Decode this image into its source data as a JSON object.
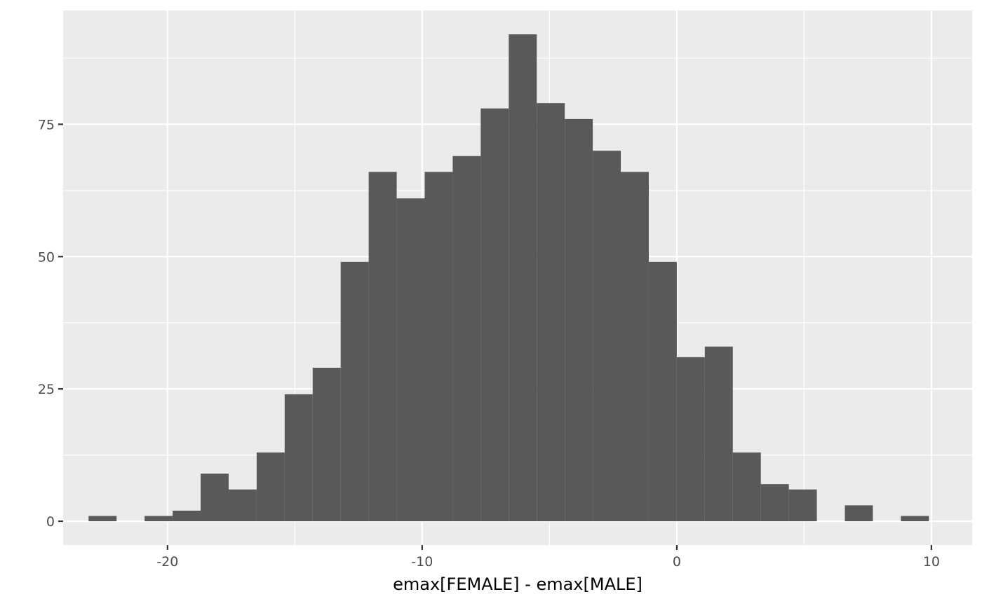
{
  "chart_data": {
    "type": "histogram",
    "title": "",
    "xlabel": "emax[FEMALE] - emax[MALE]",
    "ylabel": "",
    "xlim": [
      -24.1,
      11.6
    ],
    "ylim": [
      -4.5,
      96.5
    ],
    "bin_width": 1.1,
    "x_ticks": [
      -20,
      -10,
      0,
      10
    ],
    "x_tick_labels": [
      "-20",
      "-10",
      "0",
      "10"
    ],
    "y_ticks": [
      0,
      25,
      50,
      75
    ],
    "y_tick_labels": [
      "0",
      "25",
      "50",
      "75"
    ],
    "grid": true,
    "legend": "none",
    "colors": {
      "panel": "#ebebeb",
      "grid": "#ffffff",
      "bar": "#595959",
      "tick": "#333333"
    },
    "bins": [
      {
        "x": -22.55,
        "count": 1
      },
      {
        "x": -21.45,
        "count": 0
      },
      {
        "x": -20.35,
        "count": 1
      },
      {
        "x": -19.25,
        "count": 2
      },
      {
        "x": -18.15,
        "count": 9
      },
      {
        "x": -17.05,
        "count": 6
      },
      {
        "x": -15.95,
        "count": 13
      },
      {
        "x": -14.85,
        "count": 24
      },
      {
        "x": -13.75,
        "count": 29
      },
      {
        "x": -12.65,
        "count": 49
      },
      {
        "x": -11.55,
        "count": 66
      },
      {
        "x": -10.45,
        "count": 61
      },
      {
        "x": -9.35,
        "count": 66
      },
      {
        "x": -8.25,
        "count": 69
      },
      {
        "x": -7.15,
        "count": 78
      },
      {
        "x": -6.05,
        "count": 92
      },
      {
        "x": -4.95,
        "count": 79
      },
      {
        "x": -3.85,
        "count": 76
      },
      {
        "x": -2.75,
        "count": 70
      },
      {
        "x": -1.65,
        "count": 66
      },
      {
        "x": -0.55,
        "count": 49
      },
      {
        "x": 0.55,
        "count": 31
      },
      {
        "x": 1.65,
        "count": 33
      },
      {
        "x": 2.75,
        "count": 13
      },
      {
        "x": 3.85,
        "count": 7
      },
      {
        "x": 4.95,
        "count": 6
      },
      {
        "x": 6.05,
        "count": 0
      },
      {
        "x": 7.15,
        "count": 3
      },
      {
        "x": 8.25,
        "count": 0
      },
      {
        "x": 9.35,
        "count": 1
      }
    ]
  }
}
